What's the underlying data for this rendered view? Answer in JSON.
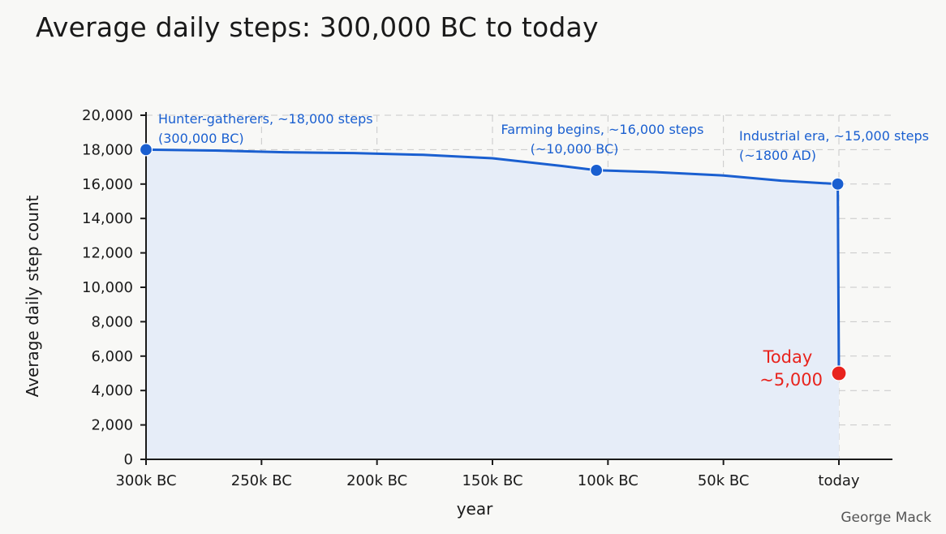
{
  "title": "Average daily steps: 300,000 BC to today",
  "credit": "George Mack",
  "chart_data": {
    "type": "area",
    "xlabel": "year",
    "ylabel": "Average daily step count",
    "x_tick_labels": [
      "300k BC",
      "250k BC",
      "200k BC",
      "150k BC",
      "100k BC",
      "50k BC",
      "today"
    ],
    "x_tick_values": [
      -300000,
      -250000,
      -200000,
      -150000,
      -100000,
      -50000,
      0
    ],
    "y_ticks": [
      0,
      2000,
      4000,
      6000,
      8000,
      10000,
      12000,
      14000,
      16000,
      18000,
      20000
    ],
    "y_tick_labels": [
      "0",
      "2,000",
      "4,000",
      "6,000",
      "8,000",
      "10,000",
      "12,000",
      "14,000",
      "16,000",
      "18,000",
      "20,000"
    ],
    "xlim": [
      -300000,
      0
    ],
    "ylim": [
      0,
      20000
    ],
    "grid": true,
    "series": [
      {
        "x": [
          -300000,
          -270000,
          -240000,
          -210000,
          -180000,
          -150000,
          -120000,
          -105000,
          -80000,
          -50000,
          -25000,
          -500,
          0
        ],
        "y": [
          18000,
          17950,
          17850,
          17800,
          17700,
          17500,
          17050,
          16800,
          16700,
          16500,
          16200,
          16000,
          5000
        ],
        "color": "#1a5fd0",
        "fill": "#e6edf8"
      }
    ],
    "points": [
      {
        "x": -300000,
        "y": 18000,
        "color": "#1a5fd0"
      },
      {
        "x": -105000,
        "y": 16800,
        "color": "#1a5fd0"
      },
      {
        "x": -500,
        "y": 16000,
        "color": "#1a5fd0"
      },
      {
        "x": 0,
        "y": 5000,
        "color": "#e8231d"
      }
    ],
    "annotations": [
      {
        "lines": [
          "Hunter-gatherers, ~18,000 steps",
          "(300,000 BC)"
        ],
        "color": "#1a5fd0"
      },
      {
        "lines": [
          "Farming begins, ~16,000 steps",
          "(~10,000 BC)"
        ],
        "color": "#1a5fd0"
      },
      {
        "lines": [
          "Industrial era, ~15,000 steps",
          "(~1800 AD)"
        ],
        "color": "#1a5fd0"
      },
      {
        "lines": [
          "Today",
          "~5,000"
        ],
        "color": "#e8231d"
      }
    ]
  }
}
